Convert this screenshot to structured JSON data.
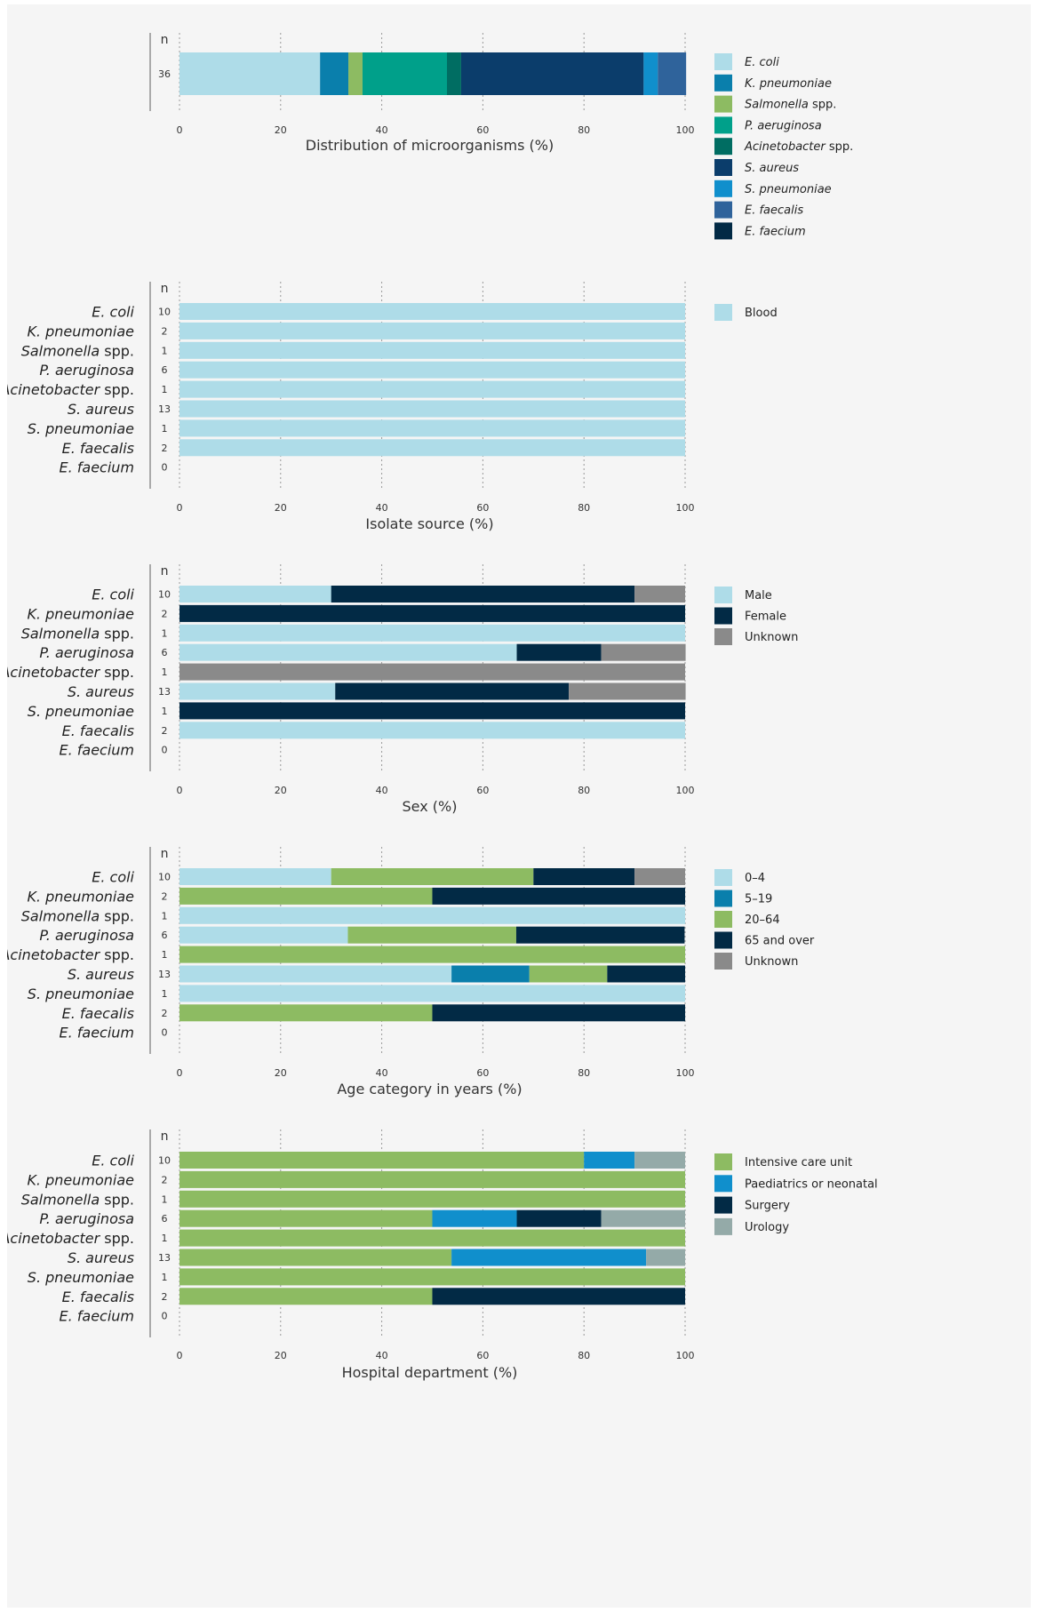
{
  "colors": {
    "light_blue": "#aedce8",
    "teal_blue": "#0a7fac",
    "green": "#8dbb62",
    "teal": "#00a08a",
    "dark_teal": "#006d62",
    "navy": "#0b3d6b",
    "bright_blue": "#108fcc",
    "steel_blue": "#2f639b",
    "dark_navy": "#022a45",
    "grey": "#8a8a8a",
    "grey_green": "#94aaa8"
  },
  "common": {
    "n_label": "n",
    "organisms": [
      {
        "name": "E. coli",
        "suffix": "",
        "n": "10"
      },
      {
        "name": "K. pneumoniae",
        "suffix": "",
        "n": "2"
      },
      {
        "name": "Salmonella",
        "suffix": " spp.",
        "n": "1"
      },
      {
        "name": "P. aeruginosa",
        "suffix": "",
        "n": "6"
      },
      {
        "name": "Acinetobacter",
        "suffix": " spp.",
        "n": "1"
      },
      {
        "name": "S. aureus",
        "suffix": "",
        "n": "13"
      },
      {
        "name": "S. pneumoniae",
        "suffix": "",
        "n": "1"
      },
      {
        "name": "E. faecalis",
        "suffix": "",
        "n": "2"
      },
      {
        "name": "E. faecium",
        "suffix": "",
        "n": "0"
      }
    ]
  },
  "chart_data": [
    {
      "type": "bar",
      "orientation": "horizontal",
      "stacked": true,
      "xlabel": "Distribution of microorganisms (%)",
      "xlim": [
        0,
        100
      ],
      "xticks": [
        "0",
        "20",
        "40",
        "60",
        "80",
        "100"
      ],
      "categories": [
        "36"
      ],
      "n": [
        "36"
      ],
      "grid": true,
      "legend_position": "right",
      "series": [
        {
          "name": "E. coli",
          "italic": true,
          "suffix": "",
          "color": "#aedce8",
          "values": [
            27.8
          ]
        },
        {
          "name": "K. pneumoniae",
          "italic": true,
          "suffix": "",
          "color": "#0a7fac",
          "values": [
            5.6
          ]
        },
        {
          "name": "Salmonella",
          "italic": true,
          "suffix": " spp.",
          "color": "#8dbb62",
          "values": [
            2.8
          ]
        },
        {
          "name": "P. aeruginosa",
          "italic": true,
          "suffix": "",
          "color": "#00a08a",
          "values": [
            16.7
          ]
        },
        {
          "name": "Acinetobacter",
          "italic": true,
          "suffix": " spp.",
          "color": "#006d62",
          "values": [
            2.8
          ]
        },
        {
          "name": "S. aureus",
          "italic": true,
          "suffix": "",
          "color": "#0b3d6b",
          "values": [
            36.1
          ]
        },
        {
          "name": "S. pneumoniae",
          "italic": true,
          "suffix": "",
          "color": "#108fcc",
          "values": [
            2.8
          ]
        },
        {
          "name": "E. faecalis",
          "italic": true,
          "suffix": "",
          "color": "#2f639b",
          "values": [
            5.6
          ]
        },
        {
          "name": "E. faecium",
          "italic": true,
          "suffix": "",
          "color": "#022a45",
          "values": [
            0
          ]
        }
      ]
    },
    {
      "type": "bar",
      "orientation": "horizontal",
      "stacked": true,
      "xlabel": "Isolate source (%)",
      "xlim": [
        0,
        100
      ],
      "xticks": [
        "0",
        "20",
        "40",
        "60",
        "80",
        "100"
      ],
      "categories": [
        "E. coli",
        "K. pneumoniae",
        "Salmonella spp.",
        "P. aeruginosa",
        "Acinetobacter spp.",
        "S. aureus",
        "S. pneumoniae",
        "E. faecalis",
        "E. faecium"
      ],
      "n": [
        "10",
        "2",
        "1",
        "6",
        "1",
        "13",
        "1",
        "2",
        "0"
      ],
      "grid": true,
      "legend_position": "right",
      "series": [
        {
          "name": "Blood",
          "italic": false,
          "suffix": "",
          "color": "#aedce8",
          "values": [
            100,
            100,
            100,
            100,
            100,
            100,
            100,
            100,
            0
          ]
        }
      ]
    },
    {
      "type": "bar",
      "orientation": "horizontal",
      "stacked": true,
      "xlabel": "Sex (%)",
      "xlim": [
        0,
        100
      ],
      "xticks": [
        "0",
        "20",
        "40",
        "60",
        "80",
        "100"
      ],
      "categories": [
        "E. coli",
        "K. pneumoniae",
        "Salmonella spp.",
        "P. aeruginosa",
        "Acinetobacter spp.",
        "S. aureus",
        "S. pneumoniae",
        "E. faecalis",
        "E. faecium"
      ],
      "n": [
        "10",
        "2",
        "1",
        "6",
        "1",
        "13",
        "1",
        "2",
        "0"
      ],
      "grid": true,
      "legend_position": "right",
      "series": [
        {
          "name": "Male",
          "italic": false,
          "suffix": "",
          "color": "#aedce8",
          "values": [
            30,
            0,
            100,
            66.7,
            0,
            30.8,
            0,
            100,
            0
          ]
        },
        {
          "name": "Female",
          "italic": false,
          "suffix": "",
          "color": "#022a45",
          "values": [
            60,
            100,
            0,
            16.7,
            0,
            46.2,
            100,
            0,
            0
          ]
        },
        {
          "name": "Unknown",
          "italic": false,
          "suffix": "",
          "color": "#8a8a8a",
          "values": [
            10,
            0,
            0,
            16.7,
            100,
            23.1,
            0,
            0,
            0
          ]
        }
      ]
    },
    {
      "type": "bar",
      "orientation": "horizontal",
      "stacked": true,
      "xlabel": "Age category in years (%)",
      "xlim": [
        0,
        100
      ],
      "xticks": [
        "0",
        "20",
        "40",
        "60",
        "80",
        "100"
      ],
      "categories": [
        "E. coli",
        "K. pneumoniae",
        "Salmonella spp.",
        "P. aeruginosa",
        "Acinetobacter spp.",
        "S. aureus",
        "S. pneumoniae",
        "E. faecalis",
        "E. faecium"
      ],
      "n": [
        "10",
        "2",
        "1",
        "6",
        "1",
        "13",
        "1",
        "2",
        "0"
      ],
      "grid": true,
      "legend_position": "right",
      "series": [
        {
          "name": "0–4",
          "italic": false,
          "suffix": "",
          "color": "#aedce8",
          "values": [
            30,
            0,
            100,
            33.3,
            0,
            53.8,
            100,
            0,
            0
          ]
        },
        {
          "name": "5–19",
          "italic": false,
          "suffix": "",
          "color": "#0a7fac",
          "values": [
            0,
            0,
            0,
            0,
            0,
            15.4,
            0,
            0,
            0
          ]
        },
        {
          "name": "20–64",
          "italic": false,
          "suffix": "",
          "color": "#8dbb62",
          "values": [
            40,
            50,
            0,
            33.3,
            100,
            15.4,
            0,
            50,
            0
          ]
        },
        {
          "name": "65 and over",
          "italic": false,
          "suffix": "",
          "color": "#022a45",
          "values": [
            20,
            50,
            0,
            33.3,
            0,
            15.4,
            0,
            50,
            0
          ]
        },
        {
          "name": "Unknown",
          "italic": false,
          "suffix": "",
          "color": "#8a8a8a",
          "values": [
            10,
            0,
            0,
            0,
            0,
            0,
            0,
            0,
            0
          ]
        }
      ]
    },
    {
      "type": "bar",
      "orientation": "horizontal",
      "stacked": true,
      "xlabel": "Hospital department (%)",
      "xlim": [
        0,
        100
      ],
      "xticks": [
        "0",
        "20",
        "40",
        "60",
        "80",
        "100"
      ],
      "categories": [
        "E. coli",
        "K. pneumoniae",
        "Salmonella spp.",
        "P. aeruginosa",
        "Acinetobacter spp.",
        "S. aureus",
        "S. pneumoniae",
        "E. faecalis",
        "E. faecium"
      ],
      "n": [
        "10",
        "2",
        "1",
        "6",
        "1",
        "13",
        "1",
        "2",
        "0"
      ],
      "grid": true,
      "legend_position": "right",
      "series": [
        {
          "name": "Intensive care unit",
          "italic": false,
          "suffix": "",
          "color": "#8dbb62",
          "values": [
            80,
            100,
            100,
            50,
            100,
            53.8,
            100,
            50,
            0
          ]
        },
        {
          "name": "Paediatrics or neonatal",
          "italic": false,
          "suffix": "",
          "color": "#108fcc",
          "values": [
            10,
            0,
            0,
            16.7,
            0,
            38.5,
            0,
            0,
            0
          ]
        },
        {
          "name": "Surgery",
          "italic": false,
          "suffix": "",
          "color": "#022a45",
          "values": [
            0,
            0,
            0,
            16.7,
            0,
            0,
            0,
            50,
            0
          ]
        },
        {
          "name": "Urology",
          "italic": false,
          "suffix": "",
          "color": "#94aaa8",
          "values": [
            10,
            0,
            0,
            16.6,
            0,
            7.7,
            0,
            0,
            0
          ]
        }
      ]
    }
  ]
}
